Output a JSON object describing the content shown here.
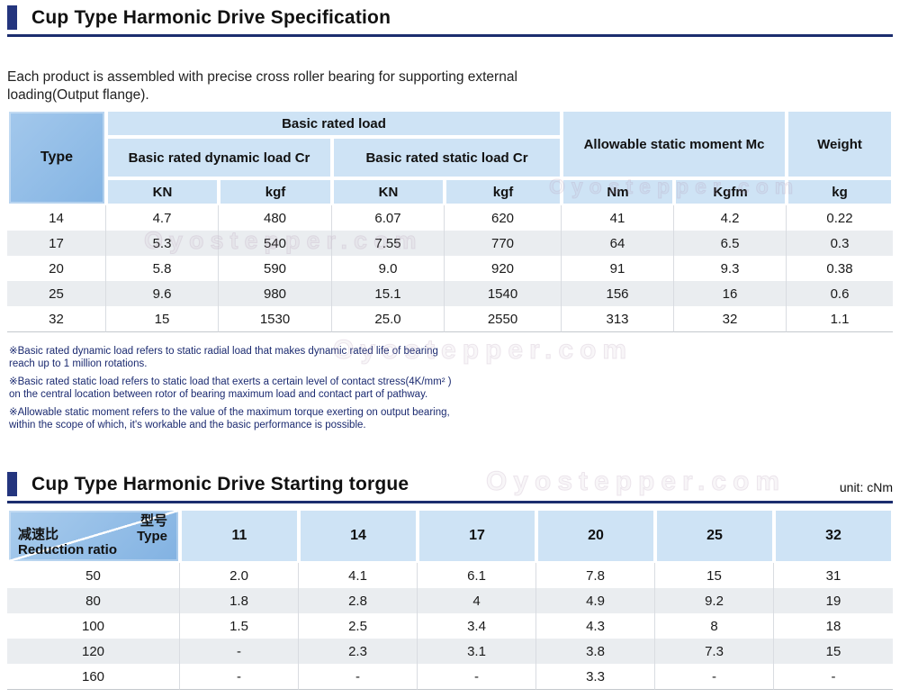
{
  "section1": {
    "title": "Cup Type Harmonic Drive Specification",
    "intro": "Each product is assembled with precise cross roller bearing for supporting external loading(Output flange).",
    "table": {
      "type_header": "Type",
      "group_header": "Basic rated load",
      "dynamic_header": "Basic rated dynamic load Cr",
      "static_header": "Basic rated static load Cr",
      "moment_header": "Allowable static moment Mc",
      "weight_header": "Weight",
      "unit_headers": [
        "KN",
        "kgf",
        "KN",
        "kgf",
        "Nm",
        "Kgfm",
        "kg"
      ],
      "rows": [
        [
          "14",
          "4.7",
          "480",
          "6.07",
          "620",
          "41",
          "4.2",
          "0.22"
        ],
        [
          "17",
          "5.3",
          "540",
          "7.55",
          "770",
          "64",
          "6.5",
          "0.3"
        ],
        [
          "20",
          "5.8",
          "590",
          "9.0",
          "920",
          "91",
          "9.3",
          "0.38"
        ],
        [
          "25",
          "9.6",
          "980",
          "15.1",
          "1540",
          "156",
          "16",
          "0.6"
        ],
        [
          "32",
          "15",
          "1530",
          "25.0",
          "2550",
          "313",
          "32",
          "1.1"
        ]
      ]
    },
    "notes": [
      "※Basic rated dynamic load refers to static radial load that makes dynamic rated life of bearing reach up to 1 million rotations.",
      "※Basic rated static load refers to static load that exerts a certain level of contact stress(4K/mm² ) on the central location between rotor of bearing maximum load and contact part of pathway.",
      "※Allowable static moment refers to the value of the maximum torque exerting on output bearing, within the scope of which, it's workable and the basic performance is possible."
    ]
  },
  "section2": {
    "title": "Cup Type Harmonic Drive Starting torgue",
    "unit_label": "unit: cNm",
    "table": {
      "corner_top_cn": "型号",
      "corner_top_en": "Type",
      "corner_bottom_cn": "减速比",
      "corner_bottom_en": "Reduction ratio",
      "type_columns": [
        "11",
        "14",
        "17",
        "20",
        "25",
        "32"
      ],
      "rows": [
        [
          "50",
          "2.0",
          "4.1",
          "6.1",
          "7.8",
          "15",
          "31"
        ],
        [
          "80",
          "1.8",
          "2.8",
          "4",
          "4.9",
          "9.2",
          "19"
        ],
        [
          "100",
          "1.5",
          "2.5",
          "3.4",
          "4.3",
          "8",
          "18"
        ],
        [
          "120",
          "-",
          "2.3",
          "3.1",
          "3.8",
          "7.3",
          "15"
        ],
        [
          "160",
          "-",
          "-",
          "-",
          "3.3",
          "-",
          "-"
        ]
      ]
    }
  },
  "watermark": {
    "text": "Oyostepper.com"
  },
  "colors": {
    "accent_navy": "#1c2d6e",
    "header_blue": "#cee3f5",
    "corner_blue": "#8ab8e6",
    "stripe_gray": "#eaedf0",
    "note_blue": "#1b2a70"
  }
}
